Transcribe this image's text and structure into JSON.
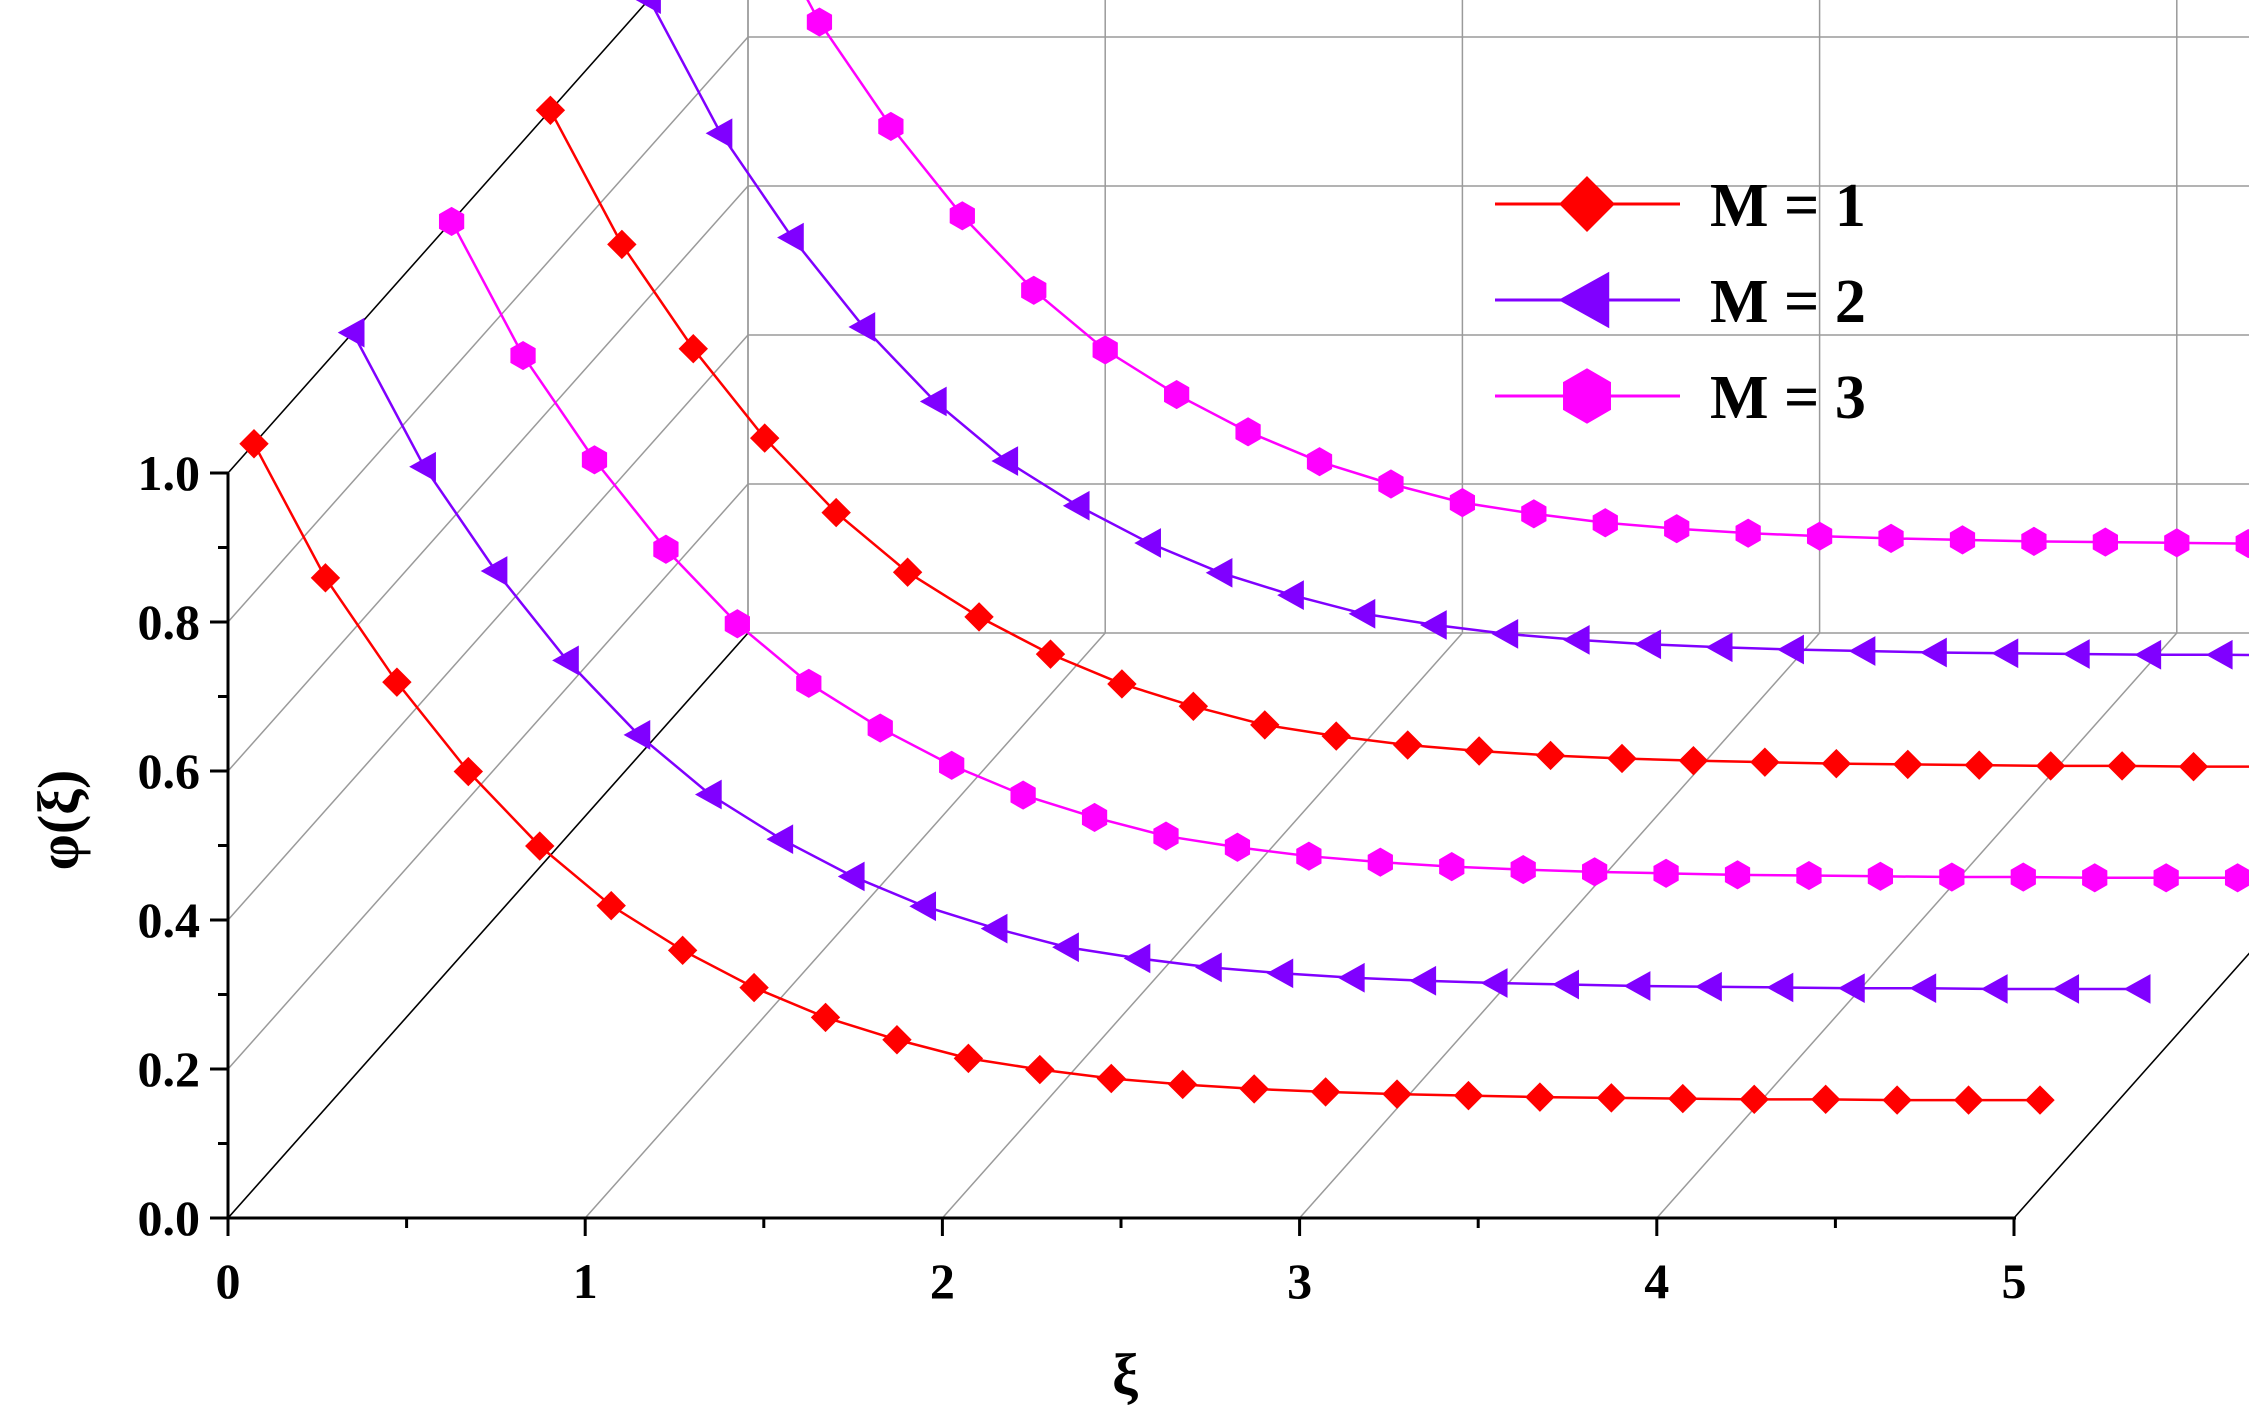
{
  "chart_data": {
    "type": "line",
    "style": "3d-waterfall",
    "title": "",
    "xlabel": "ξ",
    "ylabel": "φ(ξ)",
    "xlim": [
      0,
      5
    ],
    "ylim": [
      0,
      1
    ],
    "x_ticks": [
      "0",
      "1",
      "2",
      "3",
      "4",
      "5"
    ],
    "y_ticks": [
      "0.0",
      "0.2",
      "0.4",
      "0.6",
      "0.8",
      "1.0"
    ],
    "grid": true,
    "legend_position": "top-right",
    "x": [
      0,
      0.2,
      0.4,
      0.6,
      0.8,
      1.0,
      1.2,
      1.4,
      1.6,
      1.8,
      2.0,
      2.2,
      2.4,
      2.6,
      2.8,
      3.0,
      3.2,
      3.4,
      3.6,
      3.8,
      4.0,
      4.2,
      4.4,
      4.6,
      4.8,
      5.0
    ],
    "series": [
      {
        "name": "M = 1",
        "color": "#ff0000",
        "marker": "diamond",
        "values": [
          1.0,
          0.82,
          0.68,
          0.56,
          0.46,
          0.38,
          0.32,
          0.27,
          0.23,
          0.2,
          0.175,
          0.16,
          0.148,
          0.14,
          0.134,
          0.13,
          0.127,
          0.125,
          0.123,
          0.122,
          0.121,
          0.12,
          0.12,
          0.119,
          0.119,
          0.119
        ]
      },
      {
        "name": "M = 2",
        "color": "#8000ff",
        "marker": "triangle-left",
        "values": [
          1.0,
          0.82,
          0.68,
          0.56,
          0.46,
          0.38,
          0.32,
          0.27,
          0.23,
          0.2,
          0.175,
          0.16,
          0.148,
          0.14,
          0.134,
          0.13,
          0.127,
          0.125,
          0.123,
          0.122,
          0.121,
          0.12,
          0.12,
          0.119,
          0.119,
          0.119
        ]
      },
      {
        "name": "M = 3",
        "color": "#ff00ff",
        "marker": "hexagon",
        "values": [
          1.0,
          0.82,
          0.68,
          0.56,
          0.46,
          0.38,
          0.32,
          0.27,
          0.23,
          0.2,
          0.175,
          0.16,
          0.148,
          0.14,
          0.134,
          0.13,
          0.127,
          0.125,
          0.123,
          0.122,
          0.121,
          0.12,
          0.12,
          0.119,
          0.119,
          0.119
        ]
      }
    ]
  }
}
